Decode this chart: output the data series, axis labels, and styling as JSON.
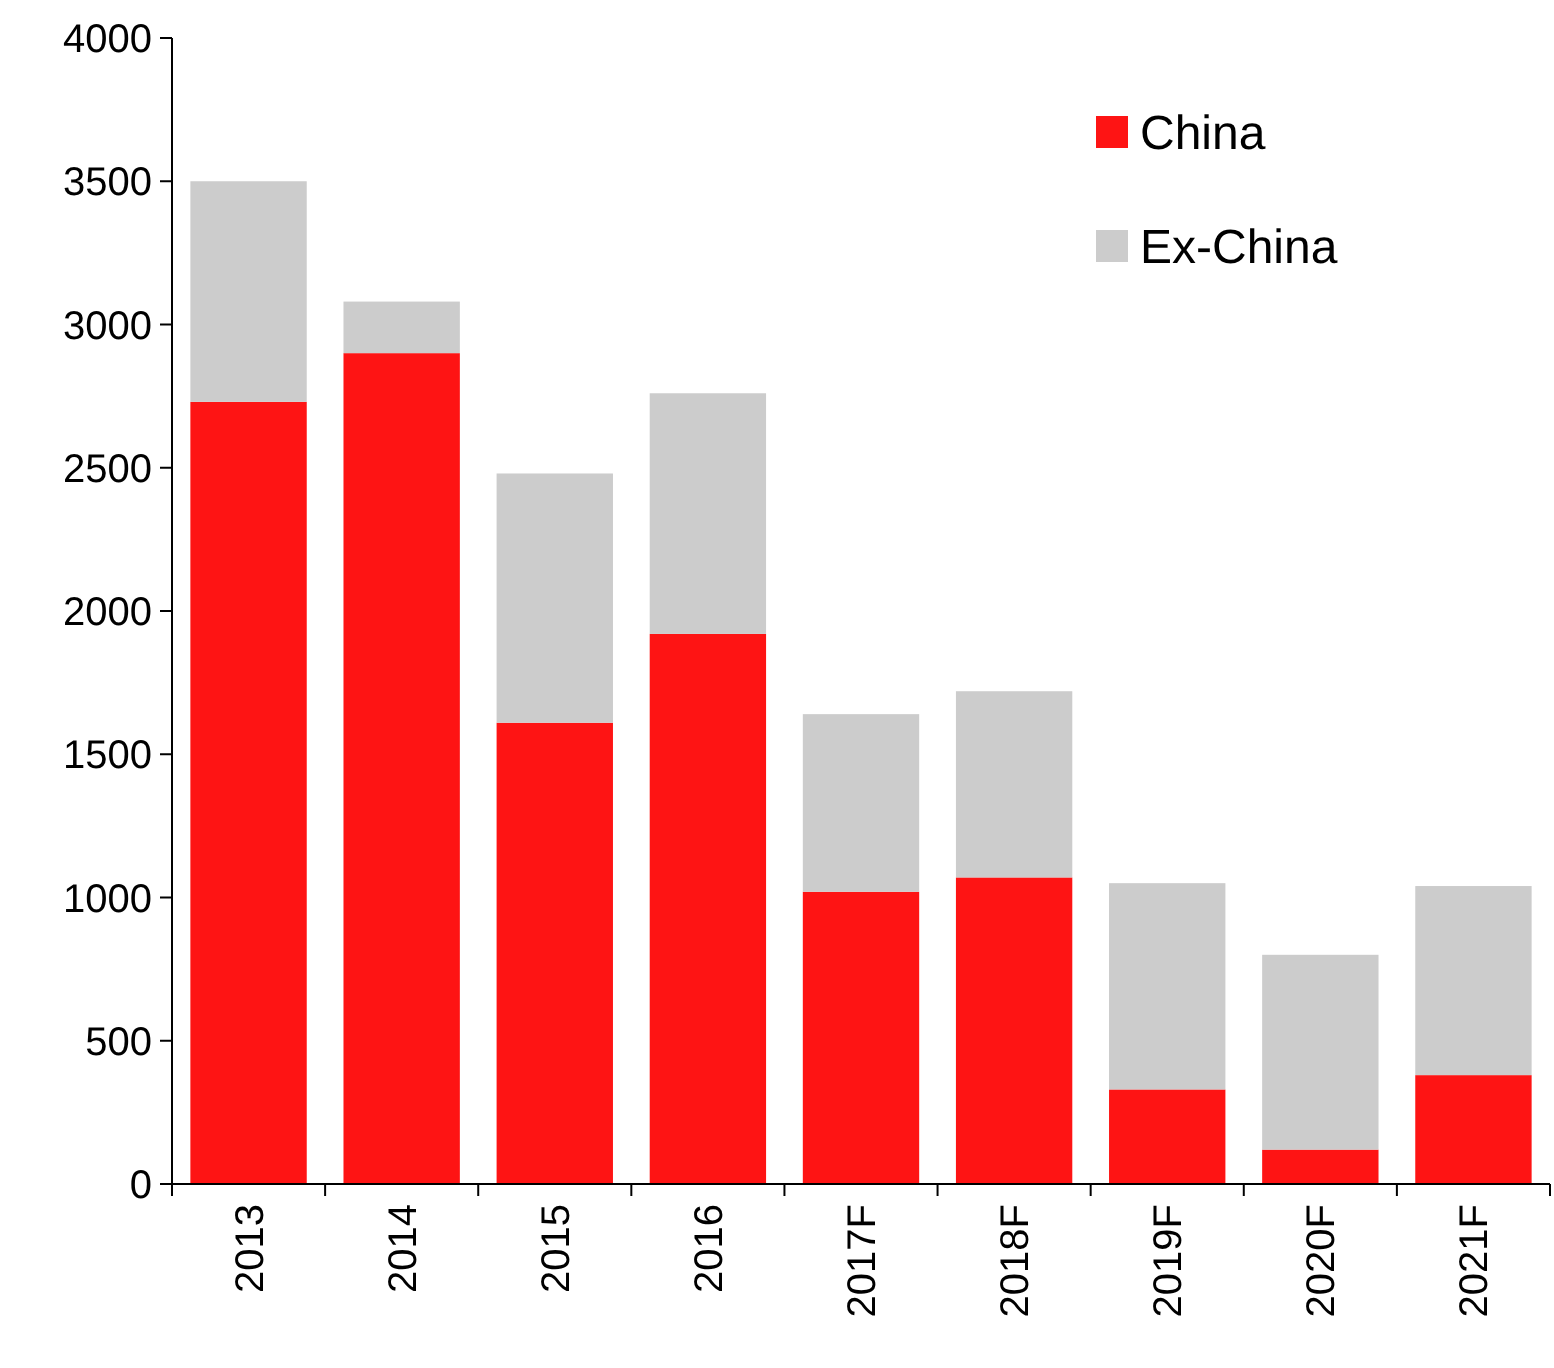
{
  "chart_data": {
    "type": "bar",
    "stacked": true,
    "categories": [
      "2013",
      "2014",
      "2015",
      "2016",
      "2017F",
      "2018F",
      "2019F",
      "2020F",
      "2021F"
    ],
    "series": [
      {
        "name": "China",
        "color": "#fe1414",
        "values": [
          2730,
          2900,
          1610,
          1920,
          1020,
          1070,
          330,
          120,
          380
        ]
      },
      {
        "name": "Ex-China",
        "color": "#cccccc",
        "values": [
          770,
          180,
          870,
          840,
          620,
          650,
          720,
          680,
          660
        ]
      }
    ],
    "ylim": [
      0,
      4000
    ],
    "yticks": [
      0,
      500,
      1000,
      1500,
      2000,
      2500,
      3000,
      3500,
      4000
    ],
    "grid": false,
    "legend": "top right"
  }
}
